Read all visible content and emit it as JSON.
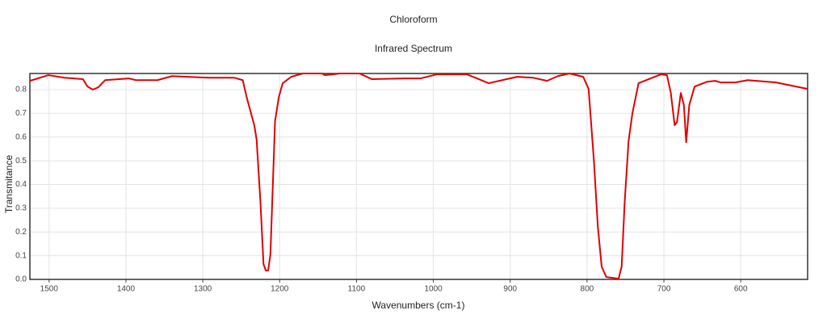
{
  "chart_data": {
    "type": "line",
    "title": "Chloroform",
    "subtitle": "Infrared Spectrum",
    "x_label": "Wavenumbers (cm-1)",
    "y_label": "Transmitance",
    "xlim": [
      1525,
      513
    ],
    "ylim": [
      0,
      0.868
    ],
    "xticks": [
      1500,
      1400,
      1300,
      1200,
      1100,
      1000,
      900,
      800,
      700,
      600
    ],
    "yticks": [
      {
        "value": 0,
        "label": "0.0"
      },
      0.1,
      0.2,
      0.3,
      0.4,
      0.5,
      0.6,
      0.7,
      0.8
    ],
    "grid": true,
    "x": [
      1525,
      1501,
      1480,
      1456,
      1450,
      1443,
      1436,
      1427,
      1396,
      1387,
      1359,
      1340,
      1291,
      1259,
      1248,
      1243,
      1233,
      1230,
      1225,
      1221,
      1218,
      1215,
      1212,
      1206,
      1201,
      1196,
      1185,
      1170,
      1145,
      1141,
      1131,
      1122,
      1096,
      1080,
      1038,
      1017,
      996,
      956,
      943,
      928,
      891,
      870,
      852,
      838,
      823,
      805,
      798,
      791,
      786,
      781,
      775,
      759,
      755,
      751,
      746,
      741,
      733,
      712,
      704,
      696,
      691,
      686,
      683,
      678,
      674,
      671,
      667,
      660,
      644,
      633,
      626,
      607,
      591,
      554,
      513
    ],
    "series": [
      {
        "name": "Chloroform",
        "color": "#e00000",
        "values": [
          0.837,
          0.861,
          0.85,
          0.844,
          0.813,
          0.8,
          0.81,
          0.84,
          0.847,
          0.84,
          0.84,
          0.857,
          0.85,
          0.85,
          0.84,
          0.769,
          0.65,
          0.59,
          0.327,
          0.065,
          0.037,
          0.037,
          0.105,
          0.667,
          0.769,
          0.827,
          0.854,
          0.868,
          0.868,
          0.861,
          0.864,
          0.868,
          0.868,
          0.844,
          0.847,
          0.847,
          0.864,
          0.864,
          0.847,
          0.827,
          0.854,
          0.85,
          0.837,
          0.857,
          0.868,
          0.854,
          0.803,
          0.497,
          0.224,
          0.054,
          0.01,
          0.003,
          0.054,
          0.327,
          0.582,
          0.7,
          0.827,
          0.854,
          0.864,
          0.861,
          0.786,
          0.65,
          0.663,
          0.786,
          0.735,
          0.578,
          0.735,
          0.813,
          0.833,
          0.837,
          0.83,
          0.83,
          0.84,
          0.83,
          0.803
        ]
      }
    ]
  }
}
